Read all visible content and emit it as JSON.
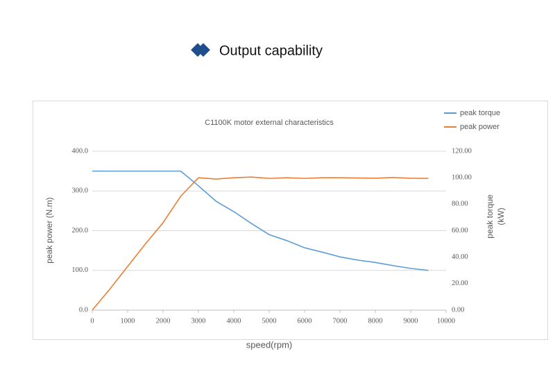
{
  "page_title": "Output capability",
  "chart_data": {
    "type": "line",
    "title": "C1100K motor  external characteristics",
    "xlabel": "speed(rpm)",
    "ylabel": "peak power (N.m)",
    "y2label": [
      "peak torque",
      "(kW)"
    ],
    "x": [
      0,
      500,
      1000,
      1500,
      2000,
      2500,
      3000,
      3500,
      4000,
      4500,
      5000,
      5500,
      6000,
      6500,
      7000,
      7500,
      8000,
      8500,
      9000,
      9500
    ],
    "series": [
      {
        "name": "peak torque",
        "color": "#5b9bd5",
        "axis": "y",
        "values": [
          350,
          350,
          350,
          350,
          350,
          350,
          313,
          274,
          248,
          218,
          190,
          175,
          157,
          146,
          134,
          126,
          120,
          112,
          105,
          100
        ]
      },
      {
        "name": "peak power",
        "color": "#ed7d31",
        "axis": "y2",
        "values": [
          0,
          16,
          33,
          50,
          66,
          86,
          100,
          99,
          100,
          100.5,
          99.5,
          100,
          99.5,
          100,
          100,
          99.8,
          99.6,
          100.2,
          99.6,
          99.5
        ]
      }
    ],
    "xlim": [
      0,
      10000
    ],
    "xticks": [
      0,
      1000,
      2000,
      3000,
      4000,
      5000,
      6000,
      7000,
      8000,
      9000,
      10000
    ],
    "ylim": [
      0,
      400
    ],
    "yticks": [
      {
        "value": 0,
        "label": "0.0"
      },
      {
        "value": 100,
        "label": "100.0"
      },
      {
        "value": 200,
        "label": "200.0"
      },
      {
        "value": 300,
        "label": "300.0"
      },
      {
        "value": 400,
        "label": "400.0"
      }
    ],
    "y2lim": [
      0,
      120
    ],
    "y2ticks": [
      {
        "value": 0,
        "label": "0.00"
      },
      {
        "value": 20,
        "label": "20.00"
      },
      {
        "value": 40,
        "label": "40.00"
      },
      {
        "value": 60,
        "label": "60.00"
      },
      {
        "value": 80,
        "label": "80.00"
      },
      {
        "value": 100,
        "label": "100.00"
      },
      {
        "value": 120,
        "label": "120.00"
      }
    ],
    "grid": true,
    "legend": "top-right"
  }
}
